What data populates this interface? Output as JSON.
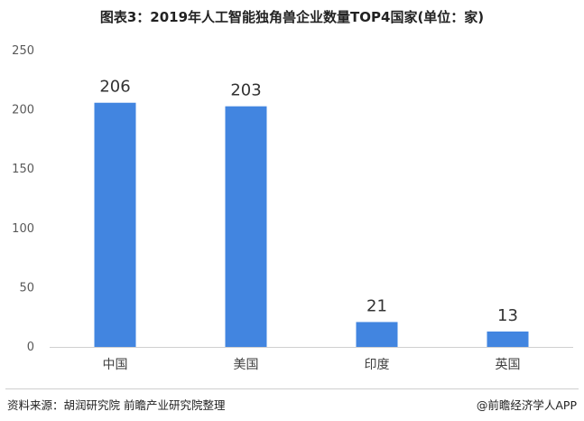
{
  "title": "图表3：2019年人工智能独角兽企业数量TOP4国家(单位：家)",
  "source": "资料来源：胡润研究院 前瞻产业研究院整理",
  "brand": "@前瞻经济学人APP",
  "colors": {
    "bar": "#4285e0",
    "axis": "#d0d0d0"
  },
  "chart_data": {
    "type": "bar",
    "title": "图表3：2019年人工智能独角兽企业数量TOP4国家(单位：家)",
    "categories": [
      "中国",
      "美国",
      "印度",
      "英国"
    ],
    "values": [
      206,
      203,
      21,
      13
    ],
    "xlabel": "",
    "ylabel": "",
    "ylim": [
      0,
      250
    ],
    "yticks": [
      0,
      50,
      100,
      150,
      200,
      250
    ],
    "grid": false,
    "legend": "none"
  }
}
